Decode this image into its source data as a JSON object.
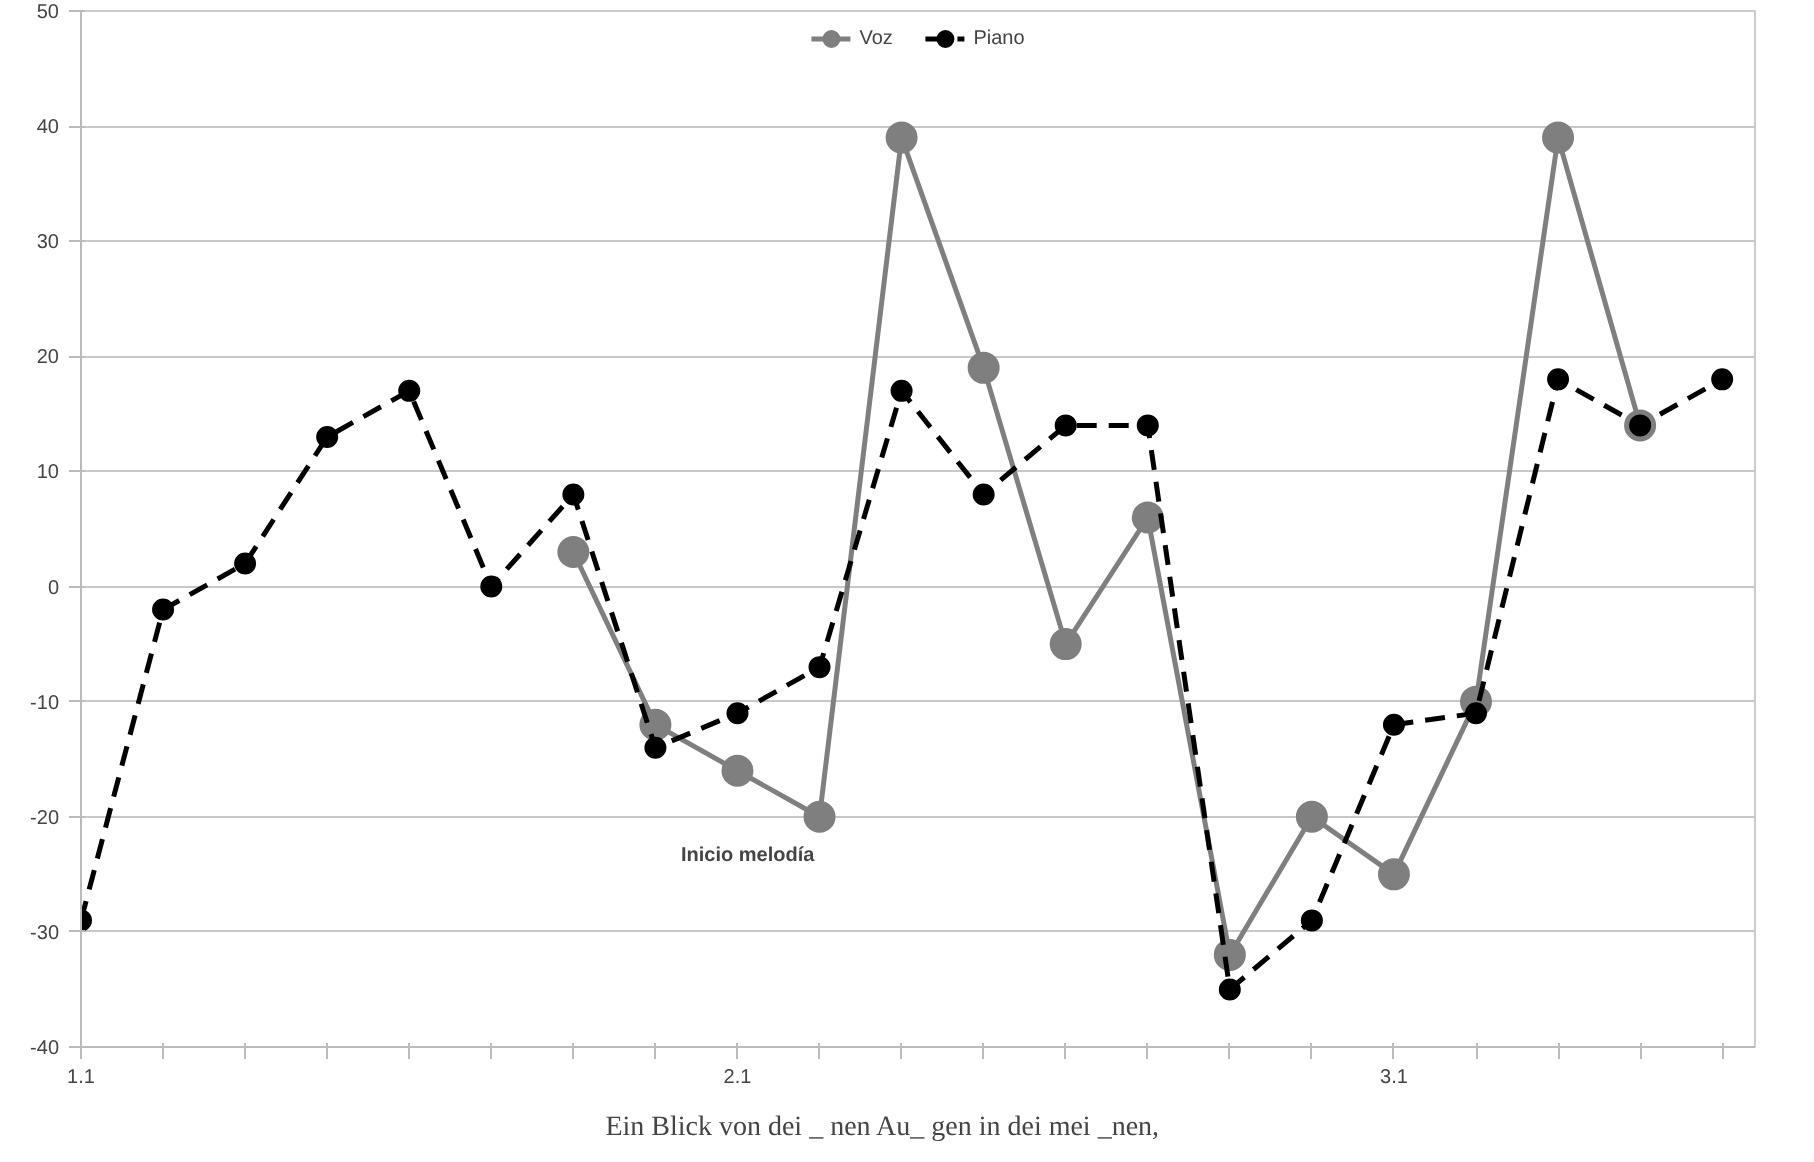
{
  "chart_data": {
    "type": "line",
    "categories": [
      "1.1",
      null,
      null,
      null,
      null,
      null,
      null,
      null,
      "2.1",
      null,
      null,
      null,
      null,
      null,
      null,
      null,
      "3.1",
      null,
      null,
      null,
      null
    ],
    "series": [
      {
        "name": "Voz",
        "color": "#7f7f7f",
        "line_style": "solid",
        "values": [
          null,
          null,
          null,
          null,
          null,
          null,
          3,
          -12,
          -16,
          -20,
          39,
          19,
          -5,
          6,
          -32,
          -20,
          -25,
          -10,
          39,
          14,
          null
        ]
      },
      {
        "name": "Piano",
        "color": "#000000",
        "line_style": "dashed",
        "values": [
          -29,
          -2,
          2,
          13,
          17,
          0,
          8,
          -14,
          -11,
          -7,
          17,
          8,
          14,
          14,
          -35,
          -29,
          -12,
          -11,
          18,
          14,
          18
        ]
      }
    ],
    "ylim": [
      -40,
      50
    ],
    "yticks": [
      -40,
      -30,
      -20,
      -10,
      0,
      10,
      20,
      30,
      40,
      50
    ],
    "grid": "y",
    "legend": "top",
    "marker": "circle",
    "annotations": [
      "Inicio melodía",
      "Ein   Blick  von  dei _ nen  Au_ gen  in   dei  mei  _nen,"
    ]
  }
}
